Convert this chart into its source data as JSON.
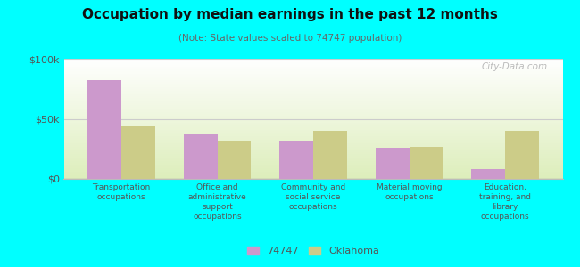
{
  "title": "Occupation by median earnings in the past 12 months",
  "subtitle": "(Note: State values scaled to 74747 population)",
  "categories": [
    "Transportation\noccupations",
    "Office and\nadministrative\nsupport\noccupations",
    "Community and\nsocial service\noccupations",
    "Material moving\noccupations",
    "Education,\ntraining, and\nlibrary\noccupations"
  ],
  "values_74747": [
    82000,
    38000,
    32000,
    26000,
    8000
  ],
  "values_oklahoma": [
    44000,
    32000,
    40000,
    27000,
    40000
  ],
  "color_74747": "#cc99cc",
  "color_oklahoma": "#cccc88",
  "bg_color": "#00ffff",
  "plot_bg_top": "#ffffff",
  "plot_bg_bottom": "#ddeebb",
  "ylim": [
    0,
    100000
  ],
  "yticks": [
    0,
    50000,
    100000
  ],
  "ytick_labels": [
    "$0",
    "$50k",
    "$100k"
  ],
  "legend_74747": "74747",
  "legend_oklahoma": "Oklahoma",
  "bar_width": 0.35,
  "watermark": "City-Data.com"
}
